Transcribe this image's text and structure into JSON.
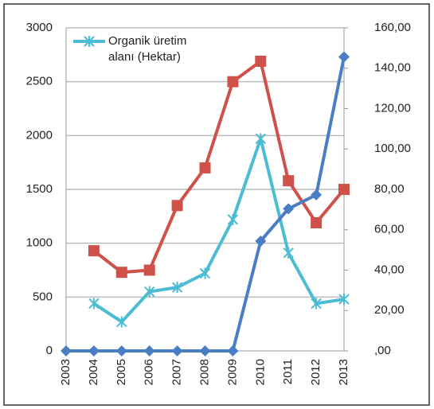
{
  "chart_data": {
    "type": "line",
    "categories": [
      "2003",
      "2004",
      "2005",
      "2006",
      "2007",
      "2008",
      "2009",
      "2010",
      "2011",
      "2012",
      "2013"
    ],
    "series": [
      {
        "color": "#d0504a",
        "marker": "square",
        "values": [
          null,
          930,
          730,
          750,
          1350,
          1700,
          2500,
          2690,
          1580,
          1190,
          1500
        ]
      },
      {
        "name": "Organik üretim alanı (Hektar)",
        "color": "#4bbcd4",
        "marker": "x",
        "values": [
          null,
          440,
          270,
          550,
          590,
          720,
          1220,
          1970,
          910,
          440,
          480
        ]
      },
      {
        "color": "#4a7ec4",
        "marker": "diamond",
        "axis": "y2",
        "values": [
          0,
          0,
          0,
          0,
          0,
          0,
          0,
          54.4,
          70.4,
          77.3,
          145.6
        ]
      }
    ],
    "ylim": [
      0,
      3000
    ],
    "yticks": [
      0,
      500,
      1000,
      1500,
      2000,
      2500,
      3000
    ],
    "y2lim": [
      0,
      160
    ],
    "y2ticks": [
      {
        "value": 0,
        "label": ",00"
      },
      {
        "value": 20,
        "label": "20,00"
      },
      {
        "value": 40,
        "label": "40,00"
      },
      {
        "value": 60,
        "label": "60,00"
      },
      {
        "value": 80,
        "label": "80,00"
      },
      {
        "value": 100,
        "label": "100,00"
      },
      {
        "value": 120,
        "label": "120,00"
      },
      {
        "value": 140,
        "label": "140,00"
      },
      {
        "value": 160,
        "label": "160,00"
      }
    ],
    "grid": true,
    "legend": "top-left"
  }
}
